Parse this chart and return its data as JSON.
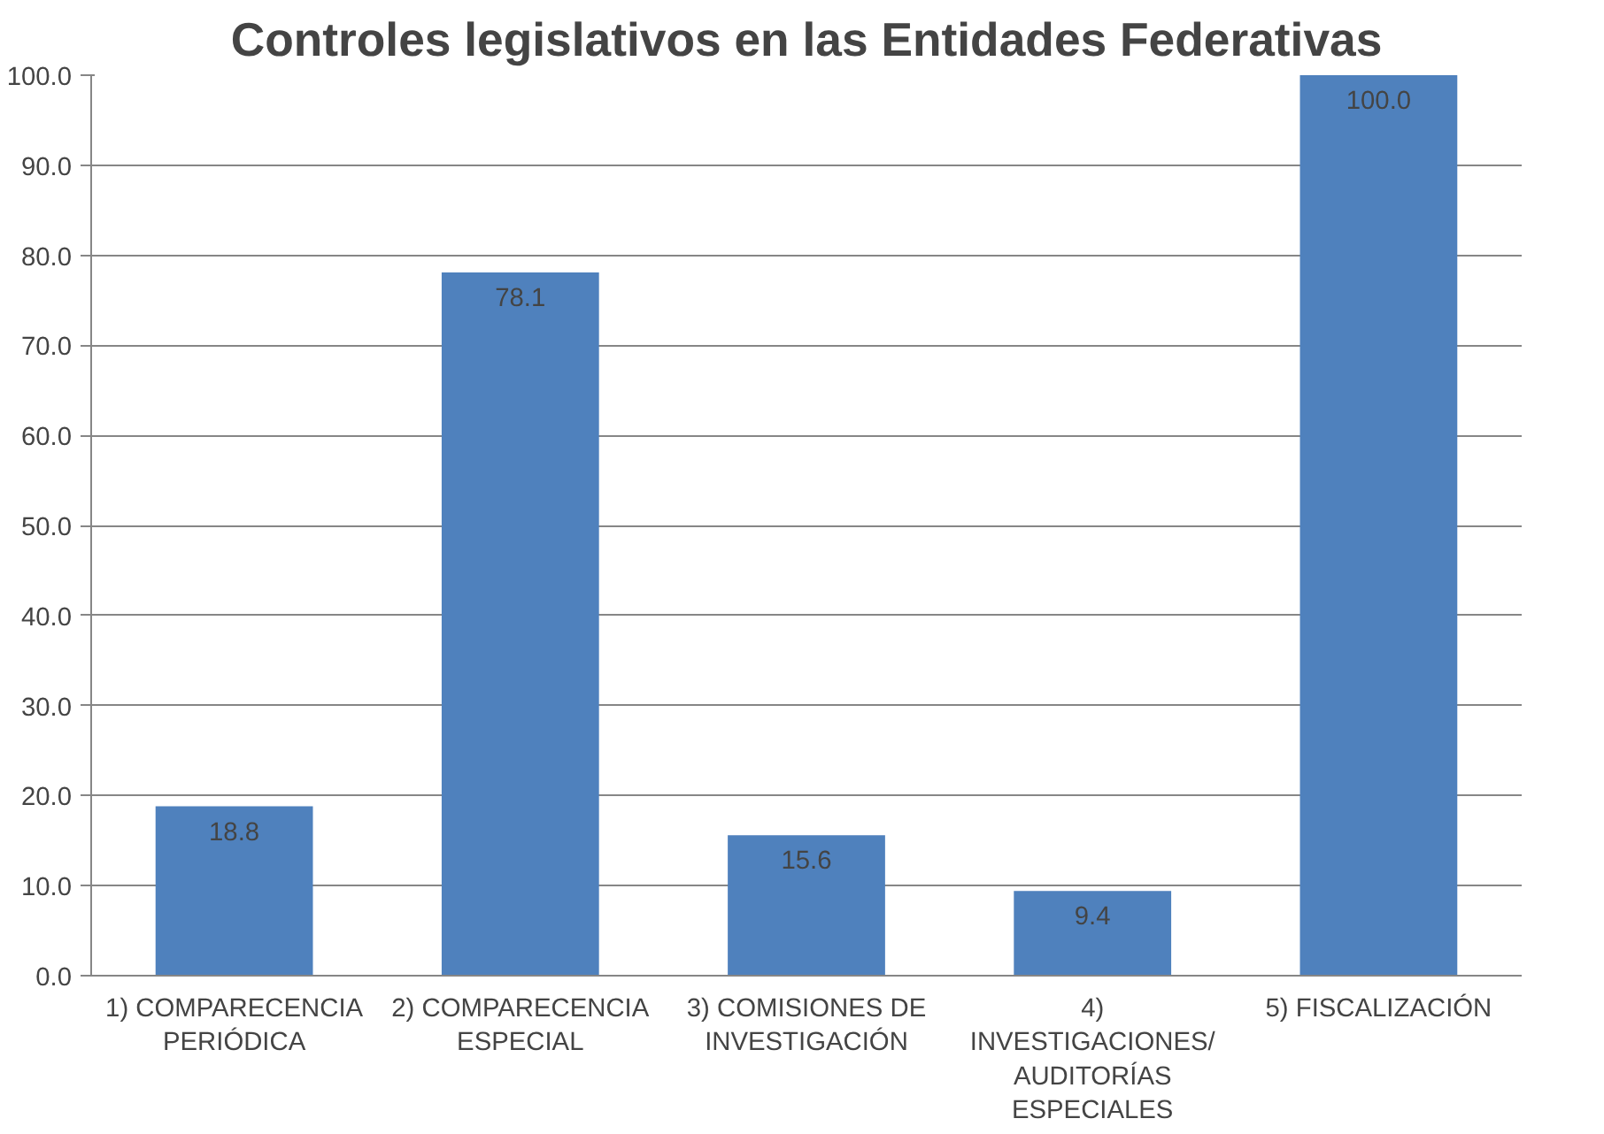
{
  "chart_data": {
    "type": "bar",
    "title": "Controles legislativos en las Entidades Federativas",
    "categories": [
      "1) COMPARECENCIA PERIÓDICA",
      "2) COMPARECENCIA ESPECIAL",
      "3) COMISIONES DE INVESTIGACIÓN",
      "4) INVESTIGACIONES/ AUDITORÍAS ESPECIALES",
      "5) FISCALIZACIÓN"
    ],
    "values": [
      18.8,
      78.1,
      15.6,
      9.4,
      100
    ],
    "value_labels": [
      "18.8",
      "78.1",
      "15.6",
      "9.4",
      "100.0"
    ],
    "color": "#4f81bd",
    "ylim": [
      0,
      100
    ],
    "yticks": [
      {
        "value": 0,
        "label": "0.0"
      },
      {
        "value": 10,
        "label": "10.0"
      },
      {
        "value": 20,
        "label": "20.0"
      },
      {
        "value": 30,
        "label": "30.0"
      },
      {
        "value": 40,
        "label": "40.0"
      },
      {
        "value": 50,
        "label": "50.0"
      },
      {
        "value": 60,
        "label": "60.0"
      },
      {
        "value": 70,
        "label": "70.0"
      },
      {
        "value": 80,
        "label": "80.0"
      },
      {
        "value": 90,
        "label": "90.0"
      },
      {
        "value": 100,
        "label": "100.0"
      }
    ],
    "grid": "y"
  }
}
